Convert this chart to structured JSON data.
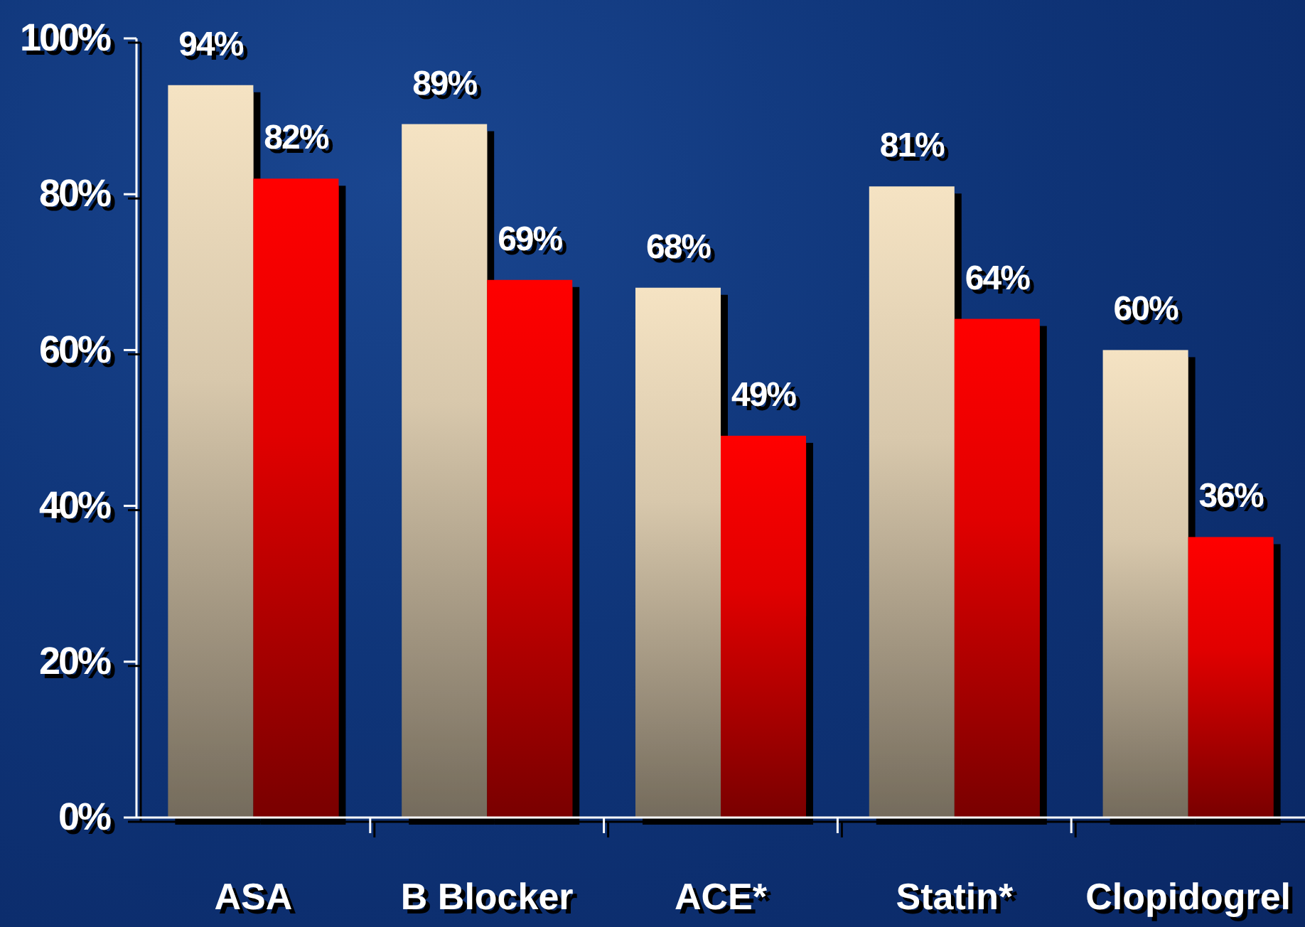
{
  "chart_data": {
    "type": "bar",
    "categories": [
      "ASA",
      "B Blocker",
      "ACE*",
      "Statin*",
      "Clopidogrel"
    ],
    "series": [
      {
        "color": "#f5e3c3",
        "values": [
          94,
          89,
          68,
          81,
          60
        ],
        "value_labels": [
          "94%",
          "89%",
          "68%",
          "81%",
          "60%"
        ]
      },
      {
        "color": "#ff0000",
        "values": [
          82,
          69,
          49,
          64,
          36
        ],
        "value_labels": [
          "82%",
          "69%",
          "49%",
          "64%",
          "36%"
        ]
      }
    ],
    "ylim": [
      0,
      100
    ],
    "yticks": [
      {
        "value": 0,
        "label": "0%"
      },
      {
        "value": 20,
        "label": "20%"
      },
      {
        "value": 40,
        "label": "40%"
      },
      {
        "value": 60,
        "label": "60%"
      },
      {
        "value": 80,
        "label": "80%"
      },
      {
        "value": 100,
        "label": "100%"
      }
    ]
  }
}
